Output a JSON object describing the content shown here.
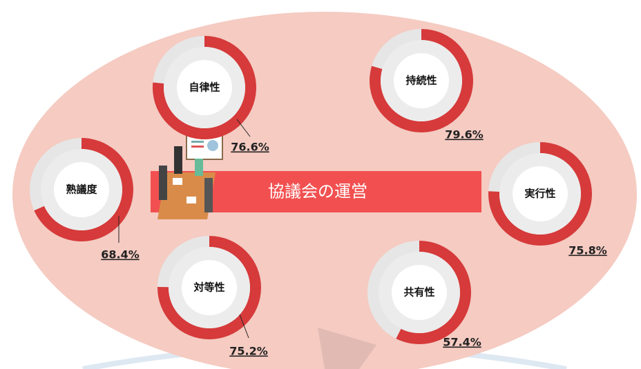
{
  "banner": "協議会の運営",
  "chart_data": [
    {
      "type": "donut",
      "title": "自律性",
      "values": [
        76.6
      ],
      "value_labels": [
        "76.6%"
      ],
      "range": [
        0,
        100
      ],
      "color": "#d63a3a",
      "track_color": "#e6e6e6"
    },
    {
      "type": "donut",
      "title": "持続性",
      "values": [
        79.6
      ],
      "value_labels": [
        "79.6%"
      ],
      "range": [
        0,
        100
      ],
      "color": "#d63a3a",
      "track_color": "#e6e6e6"
    },
    {
      "type": "donut",
      "title": "熟議度",
      "values": [
        68.4
      ],
      "value_labels": [
        "68.4%"
      ],
      "range": [
        0,
        100
      ],
      "color": "#d63a3a",
      "track_color": "#e6e6e6"
    },
    {
      "type": "donut",
      "title": "実行性",
      "values": [
        75.8
      ],
      "value_labels": [
        "75.8%"
      ],
      "range": [
        0,
        100
      ],
      "color": "#d63a3a",
      "track_color": "#e6e6e6"
    },
    {
      "type": "donut",
      "title": "対等性",
      "values": [
        75.2
      ],
      "value_labels": [
        "75.2%"
      ],
      "range": [
        0,
        100
      ],
      "color": "#d63a3a",
      "track_color": "#e6e6e6"
    },
    {
      "type": "donut",
      "title": "共有性",
      "values": [
        57.4
      ],
      "value_labels": [
        "57.4%"
      ],
      "range": [
        0,
        100
      ],
      "color": "#d63a3a",
      "track_color": "#e6e6e6"
    }
  ]
}
